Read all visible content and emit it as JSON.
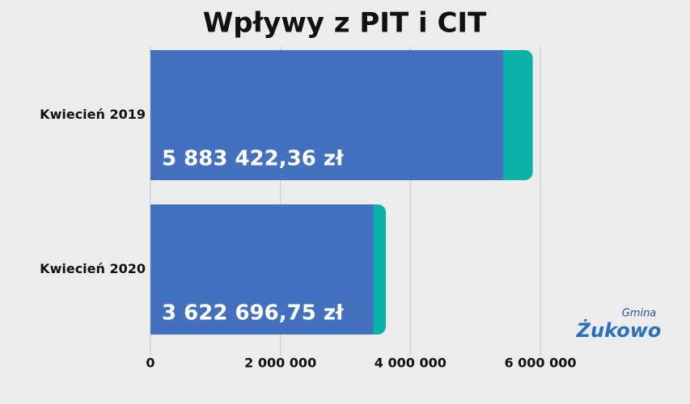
{
  "chart_data": {
    "type": "stacked-barh",
    "title": "Wpływy z PIT i CIT",
    "categories": [
      "Kwiecień 2019",
      "Kwiecień 2020"
    ],
    "series": [
      {
        "color": "#4470c0",
        "values": [
          5430000,
          3430000
        ]
      },
      {
        "color": "#0bb2a8",
        "values": [
          453422.36,
          192696.75
        ]
      }
    ],
    "total_values": [
      5883422.36,
      3622696.75
    ],
    "total_labels": [
      "5 883 422,36 zł",
      "3 622 696,75 zł"
    ],
    "xlim": [
      0,
      6000000
    ],
    "xticks": [
      0,
      {
        "value": 2000000,
        "label": "2 000 000"
      },
      {
        "value": 4000000,
        "label": "4 000 000"
      },
      {
        "value": 6000000,
        "label": "6 000 000"
      }
    ],
    "grid": true
  },
  "logo": {
    "top": "Gmina",
    "bottom": "Żukowo"
  }
}
